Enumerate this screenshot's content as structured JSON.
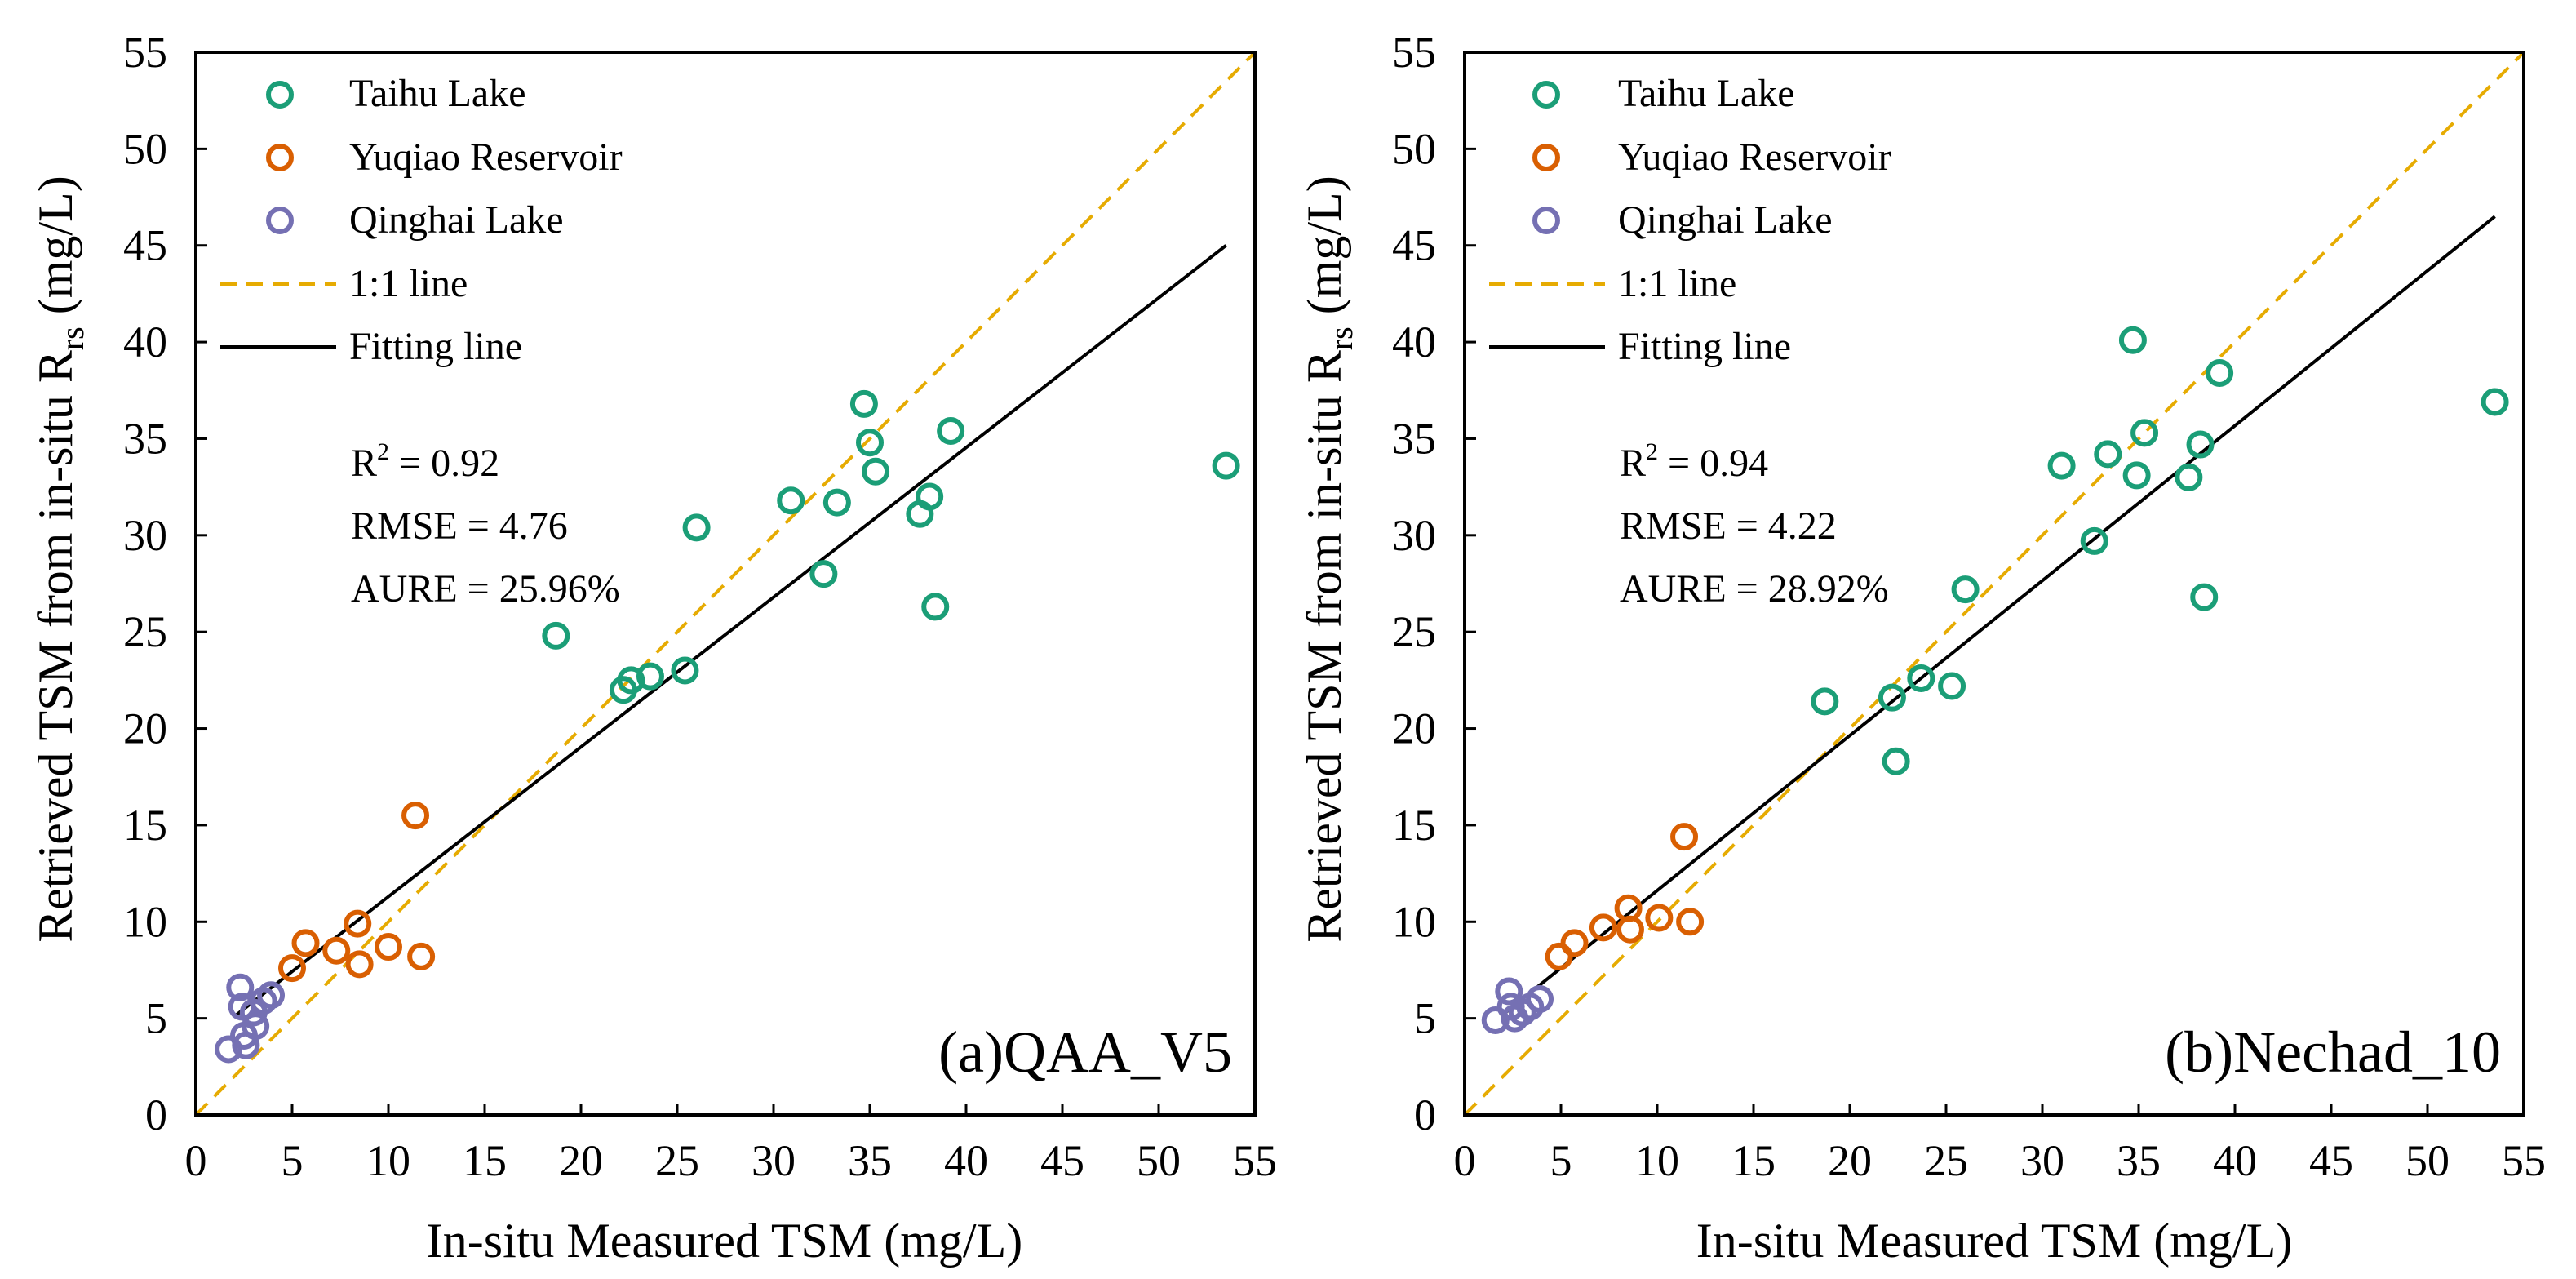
{
  "colors": {
    "taihu": "#1b9e77",
    "yuqiao": "#d95f02",
    "qinghai": "#7570b3",
    "one_to_one": "#e6ab02",
    "fit": "#000000",
    "axis": "#000000"
  },
  "chart_data": [
    {
      "type": "scatter",
      "panel_label": "(a)QAA_V5",
      "xlabel": "In-situ Measured TSM (mg/L)",
      "ylabel_main": "Retrieved TSM from in-situ R",
      "ylabel_sub": "rs",
      "ylabel_unit": "(mg/L)",
      "xlim": [
        0,
        55
      ],
      "ylim": [
        0,
        55
      ],
      "xticks": [
        "0",
        "5",
        "10",
        "15",
        "20",
        "25",
        "30",
        "35",
        "40",
        "45",
        "50",
        "55"
      ],
      "yticks": [
        "0",
        "5",
        "10",
        "15",
        "20",
        "25",
        "30",
        "35",
        "40",
        "45",
        "50",
        "55"
      ],
      "legend": {
        "taihu": "Taihu  Lake",
        "yuqiao": "Yuqiao Reservoir",
        "qinghai": "Qinghai Lake",
        "one_to_one": "1:1 line",
        "fit": "Fitting line"
      },
      "stats": {
        "r2_label": "R",
        "r2_sup": "2",
        "r2_value": " = 0.92",
        "rmse": "RMSE = 4.76",
        "aure": "AURE = 25.96%"
      },
      "fit_line": {
        "x": [
          2,
          53.5
        ],
        "y": [
          5.1,
          45
        ]
      },
      "series": [
        {
          "name": "Taihu  Lake",
          "key": "taihu",
          "x": [
            18.7,
            22.2,
            22.6,
            23.6,
            25.4,
            26.0,
            30.9,
            32.6,
            33.3,
            34.7,
            35.0,
            35.3,
            37.6,
            38.1,
            38.4,
            39.2,
            53.5
          ],
          "y": [
            24.8,
            22.0,
            22.5,
            22.7,
            23.0,
            30.4,
            31.8,
            28.0,
            31.7,
            36.8,
            34.8,
            33.3,
            31.1,
            32.0,
            26.3,
            35.4,
            33.6
          ]
        },
        {
          "name": "Yuqiao Reservoir",
          "key": "yuqiao",
          "x": [
            5.0,
            5.7,
            7.3,
            8.4,
            8.5,
            10.0,
            11.4,
            11.7
          ],
          "y": [
            7.6,
            8.9,
            8.5,
            9.9,
            7.8,
            8.7,
            15.5,
            8.2
          ]
        },
        {
          "name": "Qinghai Lake",
          "key": "qinghai",
          "x": [
            1.7,
            2.3,
            2.4,
            2.5,
            2.6,
            3.0,
            3.1,
            3.5,
            3.9
          ],
          "y": [
            3.4,
            6.6,
            5.6,
            4.1,
            3.6,
            5.3,
            4.6,
            5.9,
            6.2
          ]
        }
      ]
    },
    {
      "type": "scatter",
      "panel_label": "(b)Nechad_10",
      "xlabel": "In-situ Measured TSM (mg/L)",
      "ylabel_main": "Retrieved TSM from in-situ R",
      "ylabel_sub": "rs",
      "ylabel_unit": "(mg/L)",
      "xlim": [
        0,
        55
      ],
      "ylim": [
        0,
        55
      ],
      "xticks": [
        "0",
        "5",
        "10",
        "15",
        "20",
        "25",
        "30",
        "35",
        "40",
        "45",
        "50",
        "55"
      ],
      "yticks": [
        "0",
        "5",
        "10",
        "15",
        "20",
        "25",
        "30",
        "35",
        "40",
        "45",
        "50",
        "55"
      ],
      "legend": {
        "taihu": "Taihu  Lake",
        "yuqiao": "Yuqiao Reservoir",
        "qinghai": "Qinghai Lake",
        "one_to_one": "1:1 line",
        "fit": "Fitting line"
      },
      "stats": {
        "r2_label": "R",
        "r2_sup": "2",
        "r2_value": " = 0.94",
        "rmse": "RMSE = 4.22",
        "aure": "AURE = 28.92%"
      },
      "fit_line": {
        "x": [
          2,
          53.5
        ],
        "y": [
          5.2,
          46.5
        ]
      },
      "series": [
        {
          "name": "Taihu  Lake",
          "key": "taihu",
          "x": [
            18.7,
            22.2,
            22.4,
            23.7,
            25.3,
            26.0,
            31.0,
            32.7,
            33.4,
            34.7,
            34.9,
            35.3,
            37.6,
            38.2,
            38.4,
            39.2,
            53.5
          ],
          "y": [
            21.4,
            21.6,
            18.3,
            22.6,
            22.2,
            27.2,
            33.6,
            29.7,
            34.2,
            40.1,
            33.1,
            35.3,
            33.0,
            34.7,
            26.8,
            38.4,
            36.9
          ]
        },
        {
          "name": "Yuqiao Reservoir",
          "key": "yuqiao",
          "x": [
            4.9,
            5.7,
            7.2,
            8.5,
            8.6,
            10.1,
            11.4,
            11.7
          ],
          "y": [
            8.2,
            8.9,
            9.7,
            10.7,
            9.6,
            10.2,
            14.4,
            10.0
          ]
        },
        {
          "name": "Qinghai Lake",
          "key": "qinghai",
          "x": [
            1.6,
            2.3,
            2.4,
            2.6,
            3.0,
            3.4,
            3.9
          ],
          "y": [
            4.9,
            6.4,
            5.6,
            5.0,
            5.3,
            5.6,
            6.0
          ]
        }
      ]
    }
  ]
}
